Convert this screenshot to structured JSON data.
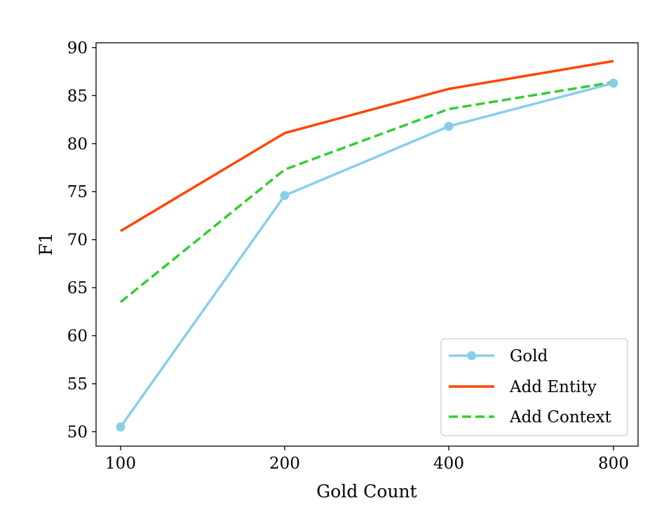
{
  "chart_data": {
    "type": "line",
    "title": "",
    "xlabel": "Gold Count",
    "ylabel": "F1",
    "categories": [
      "100",
      "200",
      "400",
      "800"
    ],
    "ylim": [
      48.5,
      90.5
    ],
    "yticks": [
      50,
      55,
      60,
      65,
      70,
      75,
      80,
      85,
      90
    ],
    "grid": false,
    "legend_position": "bottom-right",
    "series": [
      {
        "name": "Gold",
        "values": [
          50.5,
          74.6,
          81.8,
          86.3
        ],
        "color": "#87ceeb",
        "linestyle": "solid",
        "marker": "circle"
      },
      {
        "name": "Add Entity",
        "values": [
          70.9,
          81.1,
          85.7,
          88.6
        ],
        "color": "#ff4500",
        "linestyle": "solid",
        "marker": "none"
      },
      {
        "name": "Add Context",
        "values": [
          63.5,
          77.3,
          83.6,
          86.4
        ],
        "color": "#32cd32",
        "linestyle": "dashed",
        "marker": "none"
      }
    ]
  }
}
